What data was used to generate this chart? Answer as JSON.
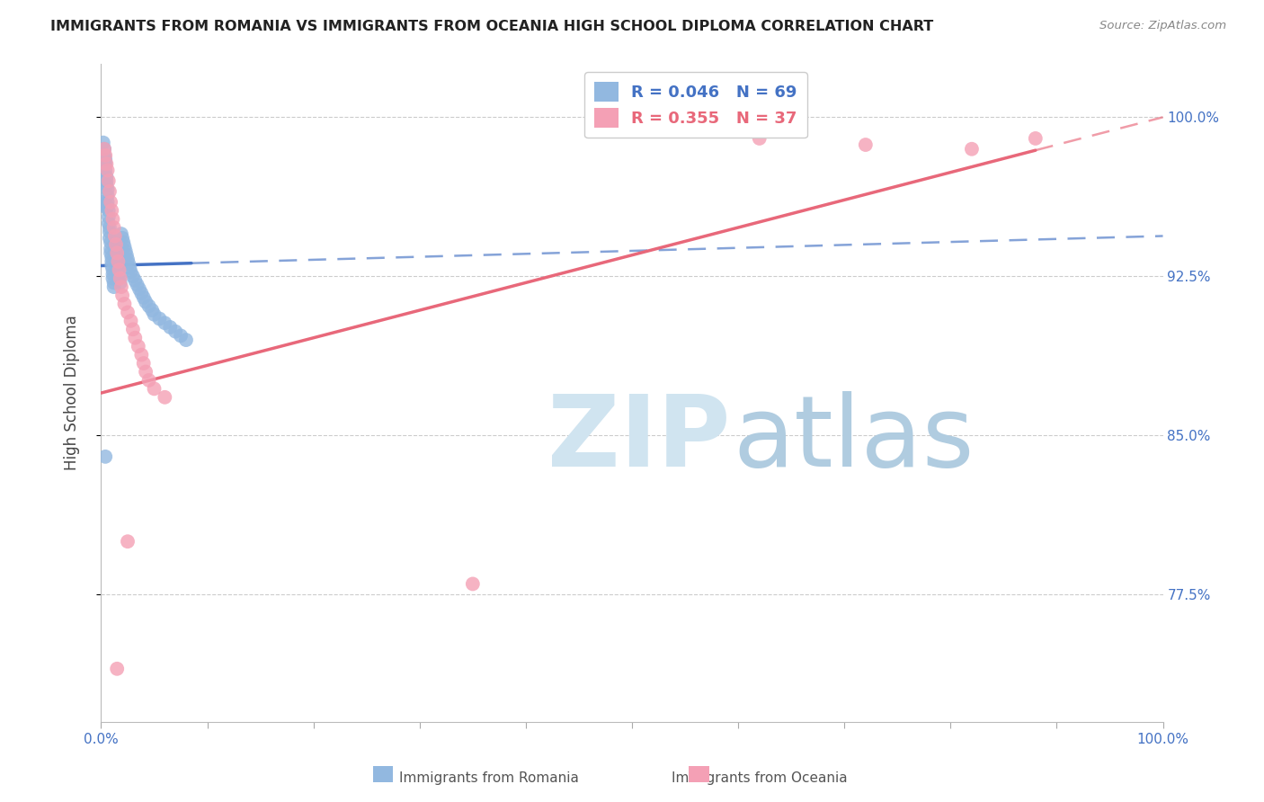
{
  "title": "IMMIGRANTS FROM ROMANIA VS IMMIGRANTS FROM OCEANIA HIGH SCHOOL DIPLOMA CORRELATION CHART",
  "source": "Source: ZipAtlas.com",
  "ylabel": "High School Diploma",
  "ytick_labels": [
    "100.0%",
    "92.5%",
    "85.0%",
    "77.5%"
  ],
  "ytick_values": [
    1.0,
    0.925,
    0.85,
    0.775
  ],
  "legend_r1": "0.046",
  "legend_n1": "69",
  "legend_r2": "0.355",
  "legend_n2": "37",
  "color_blue": "#92b8e0",
  "color_pink": "#f4a0b5",
  "color_blue_line": "#4472c4",
  "color_pink_line": "#e8687a",
  "color_blue_text": "#4472c4",
  "color_pink_text": "#e8687a",
  "xmin": 0.0,
  "xmax": 1.0,
  "ymin": 0.715,
  "ymax": 1.025,
  "romania_x": [
    0.002,
    0.003,
    0.003,
    0.004,
    0.004,
    0.004,
    0.005,
    0.005,
    0.005,
    0.006,
    0.006,
    0.006,
    0.006,
    0.007,
    0.007,
    0.007,
    0.008,
    0.008,
    0.008,
    0.009,
    0.009,
    0.009,
    0.01,
    0.01,
    0.01,
    0.011,
    0.011,
    0.011,
    0.012,
    0.012,
    0.013,
    0.013,
    0.014,
    0.014,
    0.015,
    0.015,
    0.016,
    0.016,
    0.017,
    0.018,
    0.019,
    0.02,
    0.021,
    0.022,
    0.023,
    0.024,
    0.025,
    0.026,
    0.027,
    0.028,
    0.03,
    0.032,
    0.034,
    0.036,
    0.038,
    0.04,
    0.042,
    0.045,
    0.048,
    0.05,
    0.055,
    0.06,
    0.065,
    0.07,
    0.075,
    0.08,
    0.002,
    0.003,
    0.004
  ],
  "romania_y": [
    0.988,
    0.985,
    0.982,
    0.98,
    0.978,
    0.975,
    0.972,
    0.97,
    0.968,
    0.966,
    0.963,
    0.96,
    0.958,
    0.956,
    0.953,
    0.95,
    0.948,
    0.946,
    0.943,
    0.941,
    0.938,
    0.936,
    0.934,
    0.932,
    0.93,
    0.928,
    0.926,
    0.924,
    0.922,
    0.92,
    0.94,
    0.938,
    0.936,
    0.934,
    0.932,
    0.93,
    0.928,
    0.926,
    0.924,
    0.922,
    0.945,
    0.943,
    0.941,
    0.939,
    0.937,
    0.935,
    0.933,
    0.931,
    0.929,
    0.927,
    0.925,
    0.923,
    0.921,
    0.919,
    0.917,
    0.915,
    0.913,
    0.911,
    0.909,
    0.907,
    0.905,
    0.903,
    0.901,
    0.899,
    0.897,
    0.895,
    0.96,
    0.958,
    0.84
  ],
  "oceania_x": [
    0.003,
    0.004,
    0.005,
    0.006,
    0.007,
    0.008,
    0.009,
    0.01,
    0.011,
    0.012,
    0.013,
    0.014,
    0.015,
    0.016,
    0.017,
    0.018,
    0.019,
    0.02,
    0.022,
    0.025,
    0.028,
    0.03,
    0.032,
    0.035,
    0.038,
    0.04,
    0.042,
    0.045,
    0.05,
    0.06,
    0.35,
    0.62,
    0.72,
    0.82,
    0.88,
    0.015,
    0.025
  ],
  "oceania_y": [
    0.985,
    0.982,
    0.978,
    0.975,
    0.97,
    0.965,
    0.96,
    0.956,
    0.952,
    0.948,
    0.944,
    0.94,
    0.936,
    0.932,
    0.928,
    0.924,
    0.92,
    0.916,
    0.912,
    0.908,
    0.904,
    0.9,
    0.896,
    0.892,
    0.888,
    0.884,
    0.88,
    0.876,
    0.872,
    0.868,
    0.78,
    0.99,
    0.987,
    0.985,
    0.99,
    0.74,
    0.8
  ],
  "romania_trend_y0": 0.93,
  "romania_trend_y1": 0.944,
  "oceania_trend_y0": 0.87,
  "oceania_trend_y1": 1.0
}
